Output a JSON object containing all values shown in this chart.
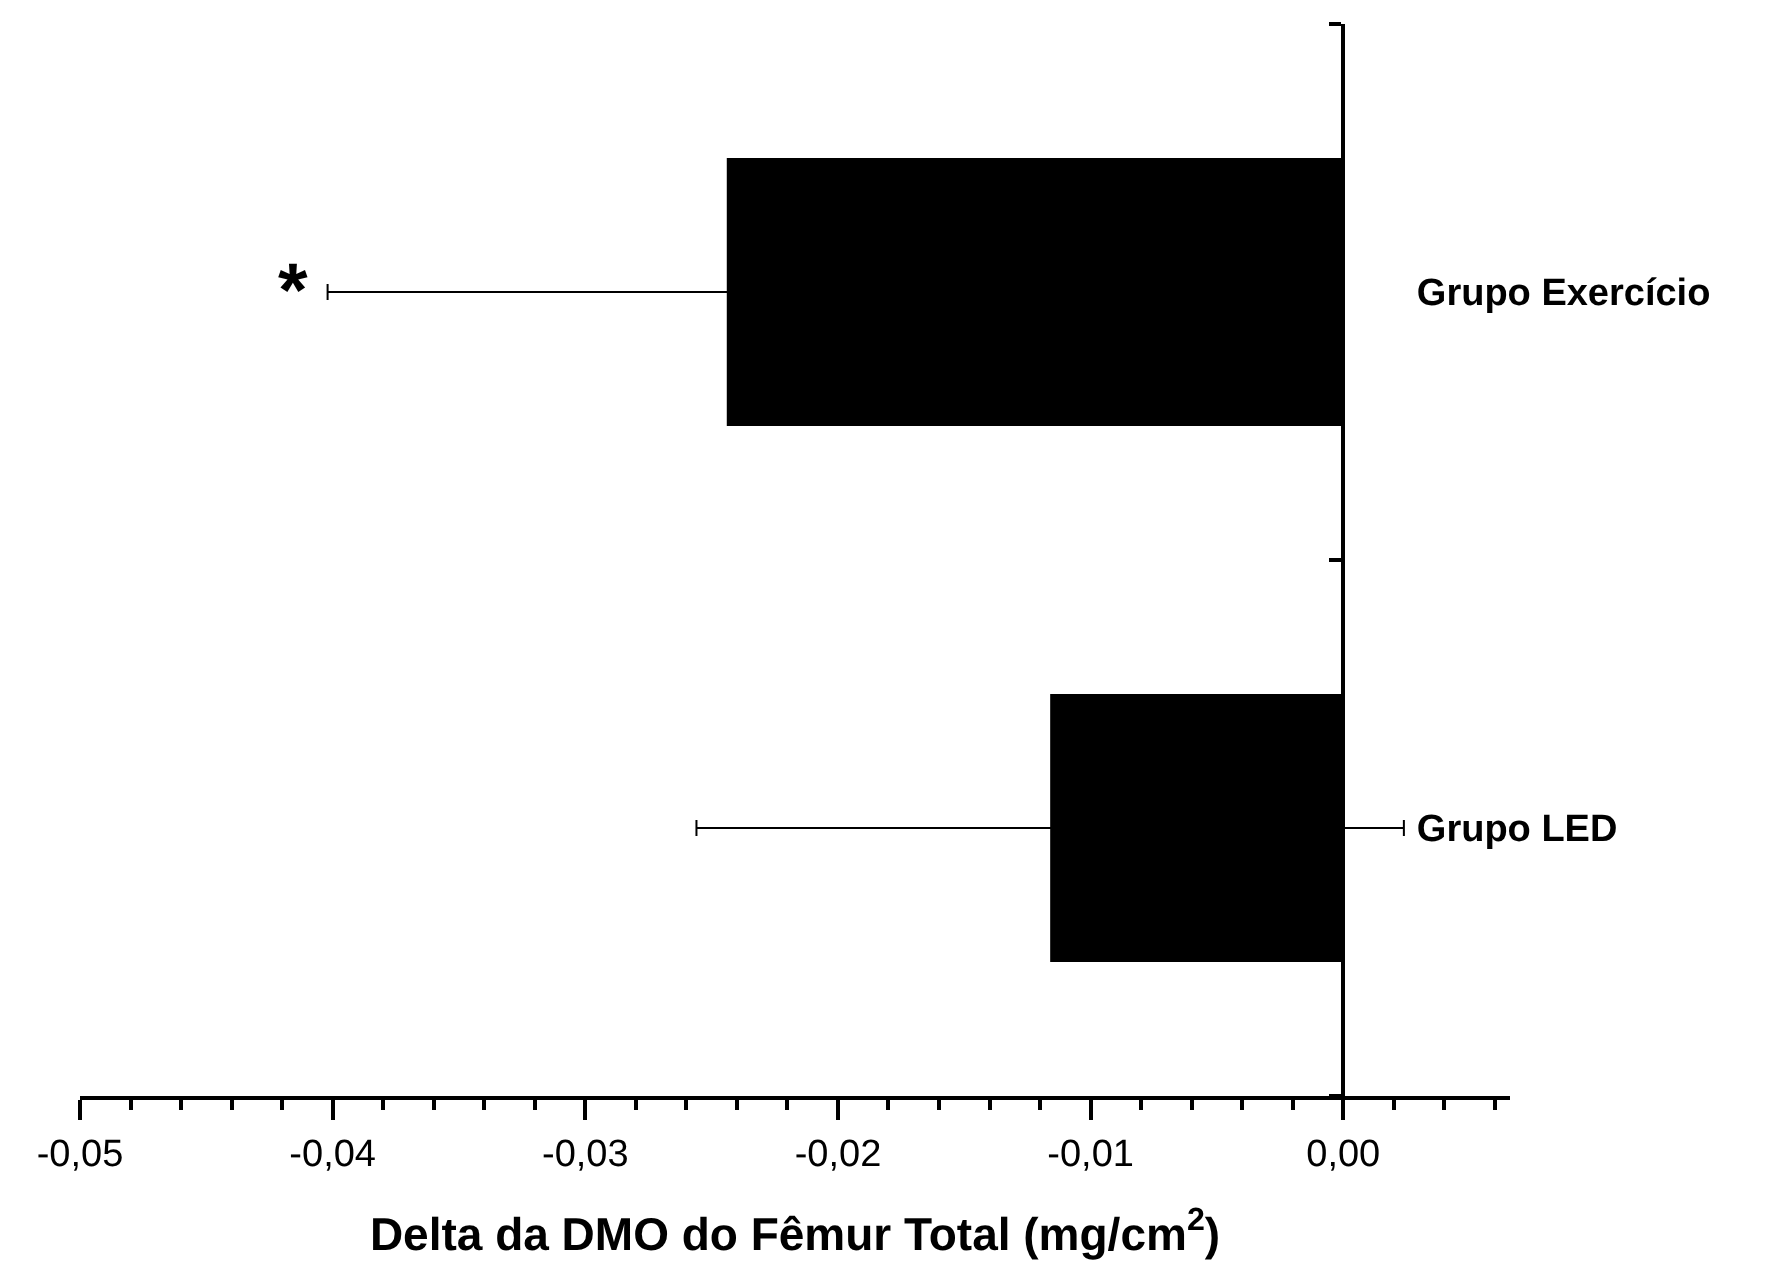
{
  "chart_data": {
    "type": "bar",
    "orientation": "horizontal",
    "categories": [
      "Grupo Exercício",
      "Grupo LED"
    ],
    "values": [
      -0.0244,
      -0.0116
    ],
    "color": "#000000",
    "errors": [
      0.0158,
      0.014
    ],
    "xlabel": "Delta da DMO do Fêmur Total (mg/cm$^{2}$)",
    "xlim": [
      -0.05,
      0.0066
    ],
    "xticks": [
      {
        "value": -0.05,
        "label": "-0,05"
      },
      {
        "value": -0.048,
        "label": null
      },
      {
        "value": -0.046,
        "label": null
      },
      {
        "value": -0.044,
        "label": null
      },
      {
        "value": -0.042,
        "label": null
      },
      {
        "value": -0.04,
        "label": "-0,04"
      },
      {
        "value": -0.038,
        "label": null
      },
      {
        "value": -0.036,
        "label": null
      },
      {
        "value": -0.034,
        "label": null
      },
      {
        "value": -0.032,
        "label": null
      },
      {
        "value": -0.03,
        "label": "-0,03"
      },
      {
        "value": -0.028,
        "label": null
      },
      {
        "value": -0.026,
        "label": null
      },
      {
        "value": -0.024,
        "label": null
      },
      {
        "value": -0.022,
        "label": null
      },
      {
        "value": -0.02,
        "label": "-0,02"
      },
      {
        "value": -0.018,
        "label": null
      },
      {
        "value": -0.016,
        "label": null
      },
      {
        "value": -0.014,
        "label": null
      },
      {
        "value": -0.012,
        "label": null
      },
      {
        "value": -0.01,
        "label": "-0,01"
      },
      {
        "value": -0.008,
        "label": null
      },
      {
        "value": -0.006,
        "label": null
      },
      {
        "value": -0.004,
        "label": null
      },
      {
        "value": -0.002,
        "label": null
      },
      {
        "value": 0,
        "label": "0,00"
      },
      {
        "value": 0.002,
        "label": null
      },
      {
        "value": 0.004,
        "label": null
      },
      {
        "value": 0.006,
        "label": null
      }
    ],
    "annotations": [
      {
        "text": "*",
        "x": -0.0402,
        "y": "Grupo Exercício"
      }
    ]
  }
}
